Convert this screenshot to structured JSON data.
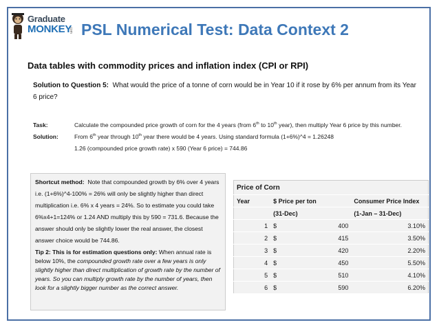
{
  "logo": {
    "line1": "Graduate",
    "line2": "MONKEY",
    "line3": ".com"
  },
  "title": "PSL Numerical Test: Data Context 2",
  "subtitle": "Data tables with commodity prices and inflation index (CPI or RPI)",
  "question": {
    "label": "Solution to Question 5:",
    "text": "What would the price of a tonne of corn would be in Year 10 if it rose by 6% per annum from its Year 6 price?"
  },
  "task": {
    "task_label": "Task:",
    "task_text_a": "Calculate the compounded price growth of corn for the 4 years (from 6",
    "task_text_b": " to 10",
    "task_text_c": " year), then multiply Year 6 price by this number.",
    "sup": "th",
    "solution_label": "Solution:",
    "solution_a": "From 6",
    "solution_b": " year through 10",
    "solution_c": " year there would be 4 years. Using standard formula (1+6%)^4 = 1.26248",
    "solution_line2": "1.26 (compounded price growth rate) x 590 (Year 6 price) = 744.86"
  },
  "shortcut": {
    "label": "Shortcut method:",
    "text": "Note that compounded growth by 6% over 4 years i.e. (1+6%)^4-100% = 26% will only be slightly higher than direct multiplication i.e. 6% x 4 years = 24%. So to estimate you could take 6%x4+1=124% or 1.24 AND multiply this by 590 = 731.6. Because the answer should only be slightly lower the real answer, the closest answer choice would be 744.86.",
    "tip_label": "Tip 2: This is for estimation questions only:",
    "tip_text_a": "When annual rate is below 10%, the ",
    "tip_text_b": "compounded growth rate over a few years is only slightly higher than direct multiplication of growth rate by the number of years. So you can multiply growth rate by the number of years, then look for a slightly bigger number as the correct answer."
  },
  "corn_table": {
    "caption": "Price of Corn",
    "headers": [
      "Year",
      "$ Price per ton",
      "Consumer Price Index"
    ],
    "subheaders": [
      "(31-Dec)",
      "(1-Jan – 31-Dec)"
    ],
    "currency": "$",
    "rows": [
      {
        "year": "1",
        "price": "400",
        "cpi": "3.10%"
      },
      {
        "year": "2",
        "price": "415",
        "cpi": "3.50%"
      },
      {
        "year": "3",
        "price": "420",
        "cpi": "2.20%"
      },
      {
        "year": "4",
        "price": "450",
        "cpi": "5.50%"
      },
      {
        "year": "5",
        "price": "510",
        "cpi": "4.10%"
      },
      {
        "year": "6",
        "price": "590",
        "cpi": "6.20%"
      }
    ]
  }
}
